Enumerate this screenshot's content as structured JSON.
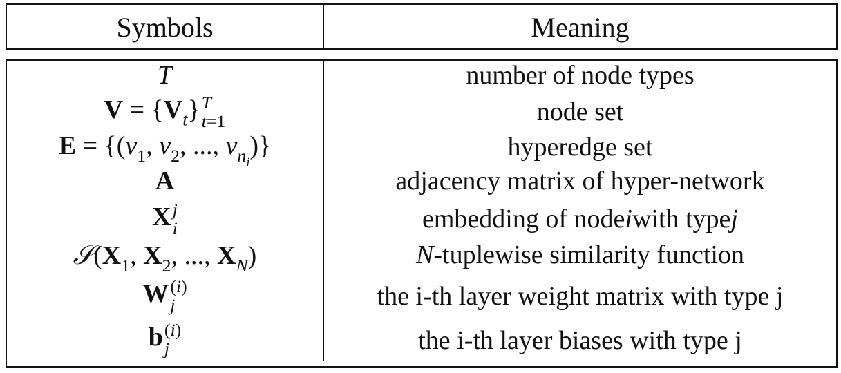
{
  "table": {
    "headers": {
      "symbols": "Symbols",
      "meaning": "Meaning"
    },
    "rows": [
      {
        "symbol": "T",
        "meaning": "number of node types"
      },
      {
        "symbol": "V = {V_t}_{t=1}^T",
        "meaning": "node set"
      },
      {
        "symbol": "E = {(v_1, v_2, ..., v_{n_i})}",
        "meaning": "hyperedge set"
      },
      {
        "symbol": "A",
        "meaning": "adjacency matrix of hyper-network"
      },
      {
        "symbol": "X_i^j",
        "meaning_prefix": "embedding of node ",
        "meaning_var_i": "i",
        "meaning_middle": " with type ",
        "meaning_var_j": "j"
      },
      {
        "symbol": "S(X_1, X_2, ..., X_N)",
        "meaning_var": "N",
        "meaning_rest": "-tuplewise similarity function"
      },
      {
        "symbol": "W_j^(i)",
        "meaning": "the i-th layer weight matrix with type j"
      },
      {
        "symbol": "b_j^(i)",
        "meaning": "the i-th layer biases with type j"
      }
    ]
  }
}
